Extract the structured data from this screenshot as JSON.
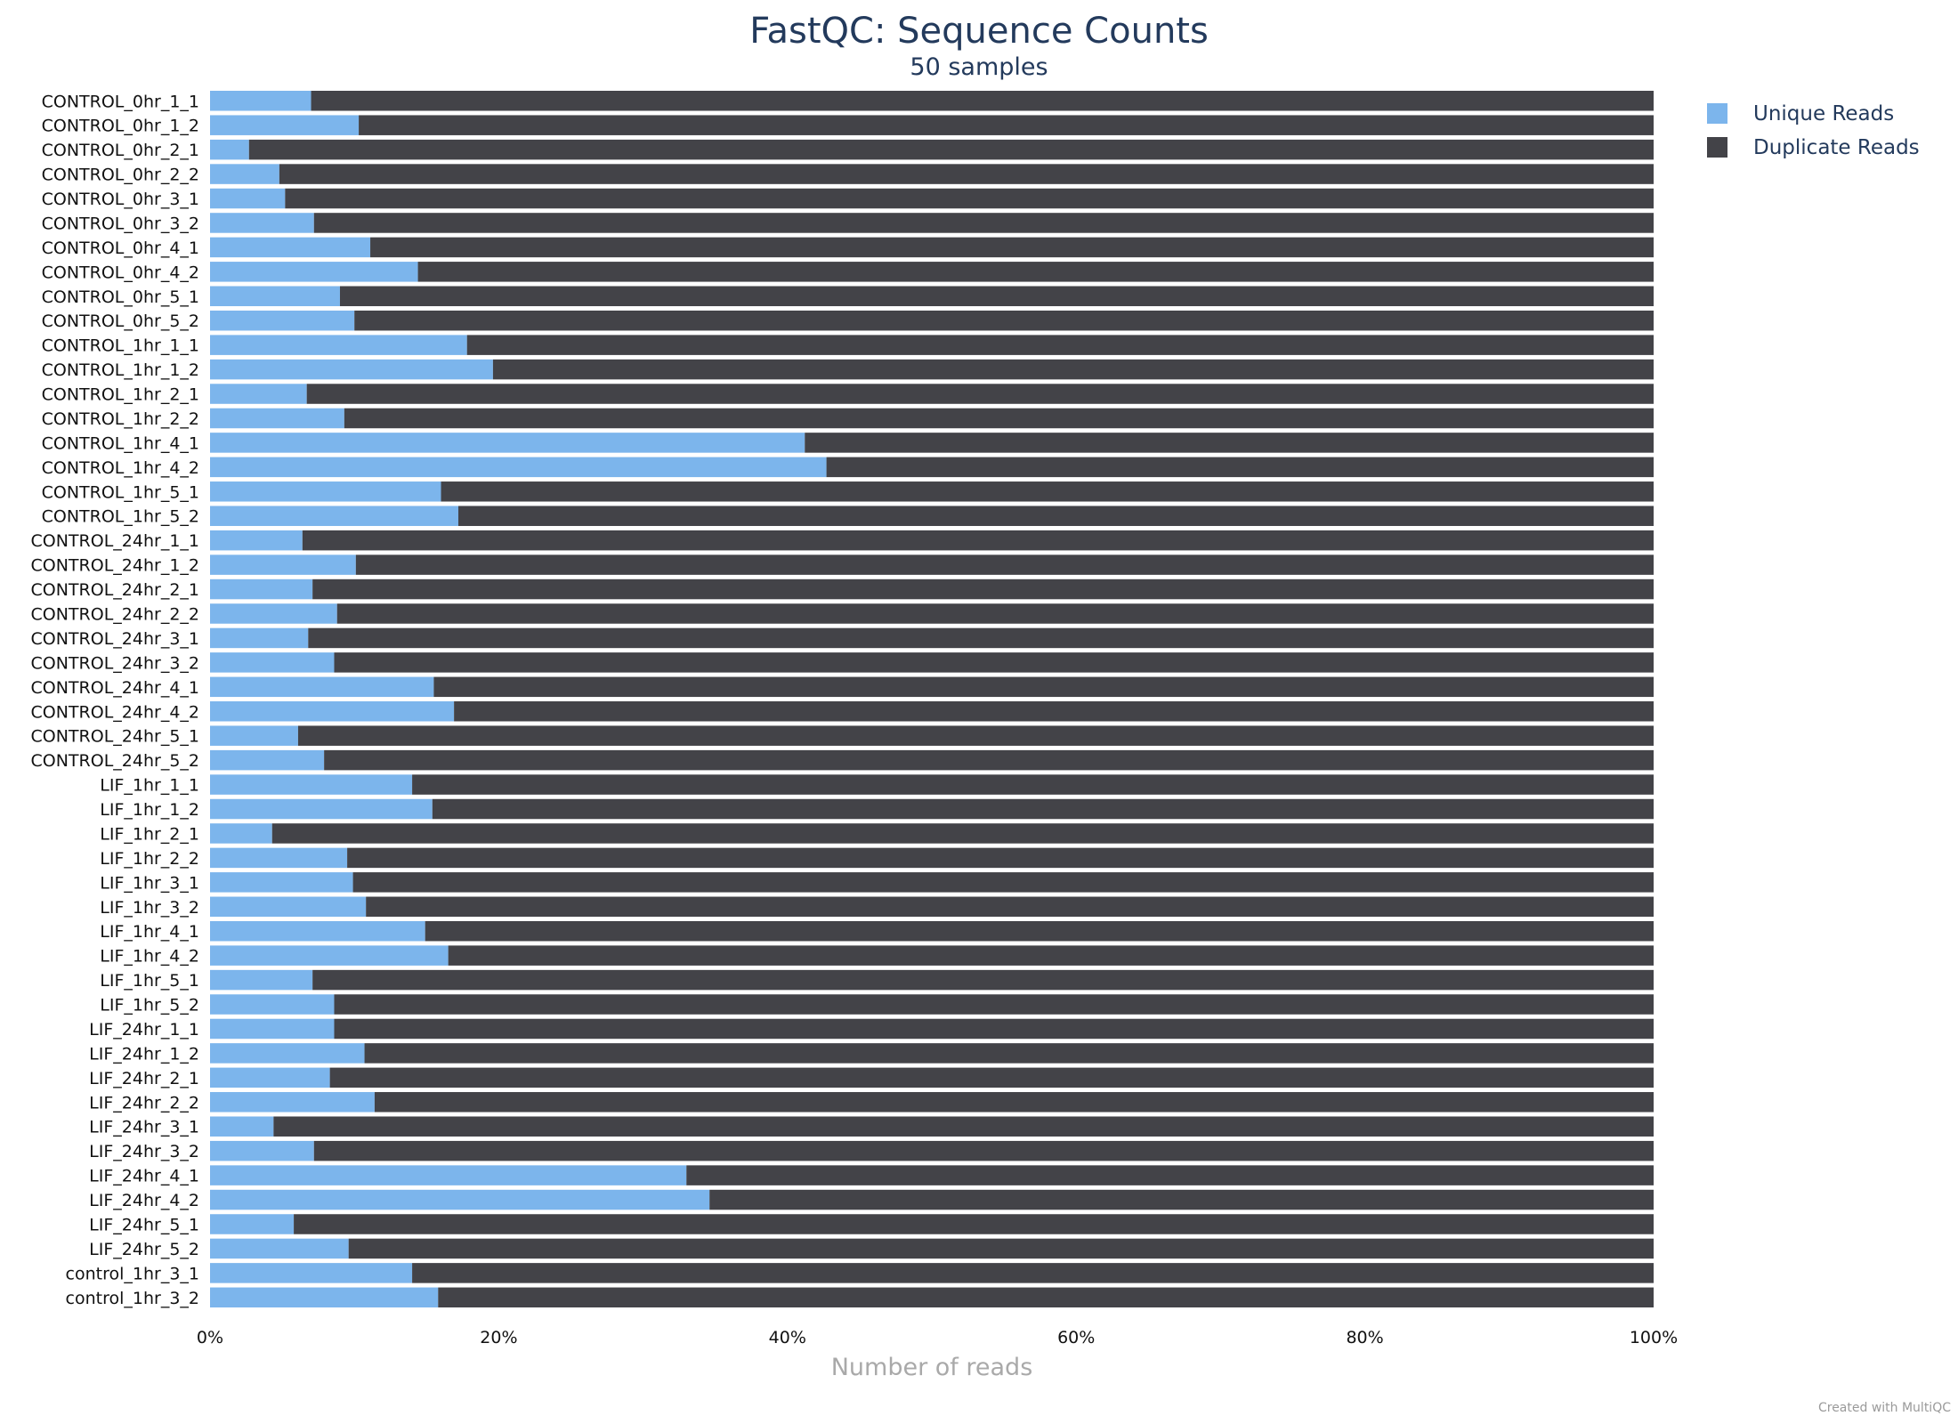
{
  "chart_data": {
    "type": "bar",
    "orientation": "horizontal",
    "stacked": true,
    "title": "FastQC: Sequence Counts",
    "subtitle": "50 samples",
    "xlabel": "Number of reads",
    "ylabel": "",
    "xlim": [
      0,
      100
    ],
    "x_ticks": [
      "0%",
      "20%",
      "40%",
      "60%",
      "80%",
      "100%"
    ],
    "x_tick_values": [
      0,
      20,
      40,
      60,
      80,
      100
    ],
    "legend_placement": "top-right",
    "grid": false,
    "categories": [
      "CONTROL_0hr_1_1",
      "CONTROL_0hr_1_2",
      "CONTROL_0hr_2_1",
      "CONTROL_0hr_2_2",
      "CONTROL_0hr_3_1",
      "CONTROL_0hr_3_2",
      "CONTROL_0hr_4_1",
      "CONTROL_0hr_4_2",
      "CONTROL_0hr_5_1",
      "CONTROL_0hr_5_2",
      "CONTROL_1hr_1_1",
      "CONTROL_1hr_1_2",
      "CONTROL_1hr_2_1",
      "CONTROL_1hr_2_2",
      "CONTROL_1hr_4_1",
      "CONTROL_1hr_4_2",
      "CONTROL_1hr_5_1",
      "CONTROL_1hr_5_2",
      "CONTROL_24hr_1_1",
      "CONTROL_24hr_1_2",
      "CONTROL_24hr_2_1",
      "CONTROL_24hr_2_2",
      "CONTROL_24hr_3_1",
      "CONTROL_24hr_3_2",
      "CONTROL_24hr_4_1",
      "CONTROL_24hr_4_2",
      "CONTROL_24hr_5_1",
      "CONTROL_24hr_5_2",
      "LIF_1hr_1_1",
      "LIF_1hr_1_2",
      "LIF_1hr_2_1",
      "LIF_1hr_2_2",
      "LIF_1hr_3_1",
      "LIF_1hr_3_2",
      "LIF_1hr_4_1",
      "LIF_1hr_4_2",
      "LIF_1hr_5_1",
      "LIF_1hr_5_2",
      "LIF_24hr_1_1",
      "LIF_24hr_1_2",
      "LIF_24hr_2_1",
      "LIF_24hr_2_2",
      "LIF_24hr_3_1",
      "LIF_24hr_3_2",
      "LIF_24hr_4_1",
      "LIF_24hr_4_2",
      "LIF_24hr_5_1",
      "LIF_24hr_5_2",
      "control_1hr_3_1",
      "control_1hr_3_2"
    ],
    "series": [
      {
        "name": "Unique Reads",
        "color": "#7cb5ec",
        "values": [
          7.0,
          10.3,
          2.7,
          4.8,
          5.2,
          7.2,
          11.1,
          14.4,
          9.0,
          10.0,
          17.8,
          19.6,
          6.7,
          9.3,
          41.2,
          42.7,
          16.0,
          17.2,
          6.4,
          10.1,
          7.1,
          8.8,
          6.8,
          8.6,
          15.5,
          16.9,
          6.1,
          7.9,
          14.0,
          15.4,
          4.3,
          9.5,
          9.9,
          10.8,
          14.9,
          16.5,
          7.1,
          8.6,
          8.6,
          10.7,
          8.3,
          11.4,
          4.4,
          7.2,
          33.0,
          34.6,
          5.8,
          9.6,
          14.0,
          15.8
        ]
      },
      {
        "name": "Duplicate Reads",
        "color": "#434348",
        "values": [
          93.0,
          89.7,
          97.3,
          95.2,
          94.8,
          92.8,
          88.9,
          85.6,
          91.0,
          90.0,
          82.2,
          80.4,
          93.3,
          90.7,
          58.8,
          57.3,
          84.0,
          82.8,
          93.6,
          89.9,
          92.9,
          91.2,
          93.2,
          91.4,
          84.5,
          83.1,
          93.9,
          92.1,
          86.0,
          84.6,
          95.7,
          90.5,
          90.1,
          89.2,
          85.1,
          83.5,
          92.9,
          91.4,
          91.4,
          89.3,
          91.7,
          88.6,
          95.6,
          92.8,
          67.0,
          65.4,
          94.2,
          90.4,
          86.0,
          84.2
        ]
      }
    ]
  },
  "footer": {
    "credit": "Created with MultiQC"
  }
}
